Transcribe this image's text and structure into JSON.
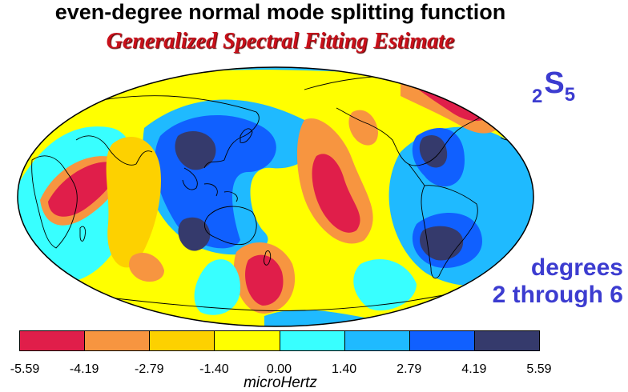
{
  "title": "even-degree normal mode splitting function",
  "subtitle": "Generalized Spectral Fitting Estimate",
  "mode_label": {
    "n": "2",
    "letter": "S",
    "l": "5"
  },
  "degrees_label": {
    "line1": "degrees",
    "line2": "2 through 6"
  },
  "colorbar": {
    "unit": "microHertz",
    "ticks": [
      "-5.59",
      "-4.19",
      "-2.79",
      "-1.40",
      "0.00",
      "1.40",
      "2.79",
      "4.19",
      "5.59"
    ],
    "colors": [
      "#e01e4a",
      "#f79540",
      "#fdd100",
      "#ffff00",
      "#38ffff",
      "#1fbaff",
      "#1060ff",
      "#353a6c"
    ]
  },
  "map": {
    "projection": "Mollweide, Pacific-centered",
    "background_color": "#ffff00",
    "coastline_color": "#000000"
  }
}
